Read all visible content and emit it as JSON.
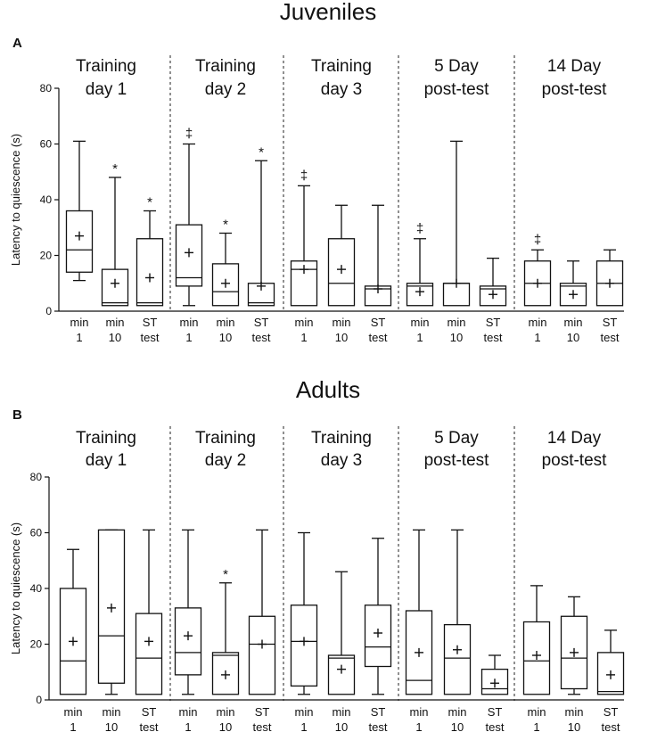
{
  "chart_data": [
    {
      "type": "boxplot",
      "panel_label": "A",
      "title": "Juveniles",
      "ylabel": "Latency to quiescence (s)",
      "ylim": [
        0,
        80
      ],
      "yticks": [
        "0",
        "20",
        "40",
        "60",
        "80"
      ],
      "groups": [
        {
          "title": [
            "Training",
            "day 1"
          ],
          "boxes": [
            {
              "label": [
                "min",
                "1"
              ],
              "min": 11,
              "q1": 14,
              "median": 22,
              "q3": 36,
              "max": 61,
              "mean": 27,
              "mark": ""
            },
            {
              "label": [
                "min",
                "10"
              ],
              "min": 2,
              "q1": 2,
              "median": 3,
              "q3": 15,
              "max": 48,
              "mean": 10,
              "mark": "*"
            },
            {
              "label": [
                "ST",
                "test"
              ],
              "min": 2,
              "q1": 2,
              "median": 3,
              "q3": 26,
              "max": 36,
              "mean": 12,
              "mark": "*"
            }
          ]
        },
        {
          "title": [
            "Training",
            "day 2"
          ],
          "boxes": [
            {
              "label": [
                "min",
                "1"
              ],
              "min": 2,
              "q1": 9,
              "median": 12,
              "q3": 31,
              "max": 60,
              "mean": 21,
              "mark": "‡"
            },
            {
              "label": [
                "min",
                "10"
              ],
              "min": 2,
              "q1": 2,
              "median": 7,
              "q3": 17,
              "max": 28,
              "mean": 10,
              "mark": "*"
            },
            {
              "label": [
                "ST",
                "test"
              ],
              "min": 2,
              "q1": 2,
              "median": 3,
              "q3": 10,
              "max": 54,
              "mean": 9,
              "mark": "*"
            }
          ]
        },
        {
          "title": [
            "Training",
            "day 3"
          ],
          "boxes": [
            {
              "label": [
                "min",
                "1"
              ],
              "min": 2,
              "q1": 2,
              "median": 15,
              "q3": 18,
              "max": 45,
              "mean": 15,
              "mark": "‡"
            },
            {
              "label": [
                "min",
                "10"
              ],
              "min": 2,
              "q1": 2,
              "median": 10,
              "q3": 26,
              "max": 38,
              "mean": 15,
              "mark": ""
            },
            {
              "label": [
                "ST",
                "test"
              ],
              "min": 2,
              "q1": 2,
              "median": 8,
              "q3": 9,
              "max": 38,
              "mean": 8,
              "mark": ""
            }
          ]
        },
        {
          "title": [
            "5 Day",
            "post-test"
          ],
          "boxes": [
            {
              "label": [
                "min",
                "1"
              ],
              "min": 2,
              "q1": 2,
              "median": 9,
              "q3": 10,
              "max": 26,
              "mean": 7,
              "mark": "‡"
            },
            {
              "label": [
                "min",
                "10"
              ],
              "min": 2,
              "q1": 2,
              "median": 10,
              "q3": 10,
              "max": 61,
              "mean": 10,
              "mark": ""
            },
            {
              "label": [
                "ST",
                "test"
              ],
              "min": 2,
              "q1": 2,
              "median": 8,
              "q3": 9,
              "max": 19,
              "mean": 6,
              "mark": ""
            }
          ]
        },
        {
          "title": [
            "14 Day",
            "post-test"
          ],
          "boxes": [
            {
              "label": [
                "min",
                "1"
              ],
              "min": 2,
              "q1": 2,
              "median": 10,
              "q3": 18,
              "max": 22,
              "mean": 10,
              "mark": "‡"
            },
            {
              "label": [
                "min",
                "10"
              ],
              "min": 2,
              "q1": 2,
              "median": 9,
              "q3": 10,
              "max": 18,
              "mean": 6,
              "mark": ""
            },
            {
              "label": [
                "ST",
                "test"
              ],
              "min": 2,
              "q1": 2,
              "median": 10,
              "q3": 18,
              "max": 22,
              "mean": 10,
              "mark": ""
            }
          ]
        }
      ]
    },
    {
      "type": "boxplot",
      "panel_label": "B",
      "title": "Adults",
      "ylabel": "Latency to quiescence (s)",
      "ylim": [
        0,
        80
      ],
      "yticks": [
        "0",
        "20",
        "40",
        "60",
        "80"
      ],
      "groups": [
        {
          "title": [
            "Training",
            "day 1"
          ],
          "boxes": [
            {
              "label": [
                "min",
                "1"
              ],
              "min": 2,
              "q1": 2,
              "median": 14,
              "q3": 40,
              "max": 54,
              "mean": 21,
              "mark": ""
            },
            {
              "label": [
                "min",
                "10"
              ],
              "min": 2,
              "q1": 6,
              "median": 23,
              "q3": 61,
              "max": 61,
              "mean": 33,
              "mark": ""
            },
            {
              "label": [
                "ST",
                "test"
              ],
              "min": 2,
              "q1": 2,
              "median": 15,
              "q3": 31,
              "max": 61,
              "mean": 21,
              "mark": ""
            }
          ]
        },
        {
          "title": [
            "Training",
            "day 2"
          ],
          "boxes": [
            {
              "label": [
                "min",
                "1"
              ],
              "min": 2,
              "q1": 9,
              "median": 17,
              "q3": 33,
              "max": 61,
              "mean": 23,
              "mark": ""
            },
            {
              "label": [
                "min",
                "10"
              ],
              "min": 2,
              "q1": 2,
              "median": 16,
              "q3": 17,
              "max": 42,
              "mean": 9,
              "mark": "*"
            },
            {
              "label": [
                "ST",
                "test"
              ],
              "min": 2,
              "q1": 2,
              "median": 20,
              "q3": 30,
              "max": 61,
              "mean": 20,
              "mark": ""
            }
          ]
        },
        {
          "title": [
            "Training",
            "day 3"
          ],
          "boxes": [
            {
              "label": [
                "min",
                "1"
              ],
              "min": 2,
              "q1": 5,
              "median": 21,
              "q3": 34,
              "max": 60,
              "mean": 21,
              "mark": ""
            },
            {
              "label": [
                "min",
                "10"
              ],
              "min": 2,
              "q1": 2,
              "median": 15,
              "q3": 16,
              "max": 46,
              "mean": 11,
              "mark": ""
            },
            {
              "label": [
                "ST",
                "test"
              ],
              "min": 2,
              "q1": 12,
              "median": 19,
              "q3": 34,
              "max": 58,
              "mean": 24,
              "mark": ""
            }
          ]
        },
        {
          "title": [
            "5 Day",
            "post-test"
          ],
          "boxes": [
            {
              "label": [
                "min",
                "1"
              ],
              "min": 2,
              "q1": 2,
              "median": 7,
              "q3": 32,
              "max": 61,
              "mean": 17,
              "mark": ""
            },
            {
              "label": [
                "min",
                "10"
              ],
              "min": 2,
              "q1": 2,
              "median": 15,
              "q3": 27,
              "max": 61,
              "mean": 18,
              "mark": ""
            },
            {
              "label": [
                "ST",
                "test"
              ],
              "min": 2,
              "q1": 2,
              "median": 4,
              "q3": 11,
              "max": 16,
              "mean": 6,
              "mark": ""
            }
          ]
        },
        {
          "title": [
            "14 Day",
            "post-test"
          ],
          "boxes": [
            {
              "label": [
                "min",
                "1"
              ],
              "min": 2,
              "q1": 2,
              "median": 14,
              "q3": 28,
              "max": 41,
              "mean": 16,
              "mark": ""
            },
            {
              "label": [
                "min",
                "10"
              ],
              "min": 2,
              "q1": 4,
              "median": 15,
              "q3": 30,
              "max": 37,
              "mean": 17,
              "mark": ""
            },
            {
              "label": [
                "ST",
                "test"
              ],
              "min": 2,
              "q1": 2,
              "median": 3,
              "q3": 17,
              "max": 25,
              "mean": 9,
              "mark": ""
            }
          ]
        }
      ]
    }
  ]
}
